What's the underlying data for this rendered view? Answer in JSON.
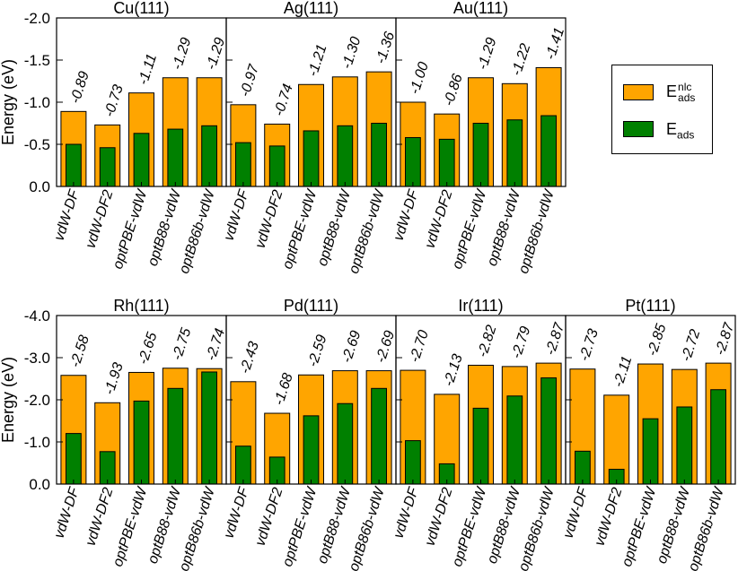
{
  "chart_data": {
    "type": "bar",
    "ylabel": "Energy (eV)",
    "categories": [
      "vdW-DF",
      "vdW-DF2",
      "optPBE-vdW",
      "optB88-vdW",
      "optB86b-vdW"
    ],
    "colors": {
      "nlc": "#FFA500",
      "ads": "#008000"
    },
    "legend": {
      "position": "right",
      "nlc_base": "E",
      "nlc_sup": "nlc",
      "nlc_sub": "ads",
      "ads_base": "E",
      "ads_sub": "ads"
    },
    "rows": [
      {
        "ylim": [
          0,
          -2.0
        ],
        "yticks": [
          0,
          -0.5,
          -1.0,
          -1.5,
          -2.0
        ],
        "ytick_labels": [
          "0.0",
          "-0.5",
          "-1.0",
          "-1.5",
          "-2.0"
        ],
        "panels": [
          {
            "title": "Cu(111)",
            "e_nlc": [
              -0.89,
              -0.73,
              -1.11,
              -1.29,
              -1.29
            ],
            "e_nlc_labels": [
              "-0.89",
              "-0.73",
              "-1.11",
              "-1.29",
              "-1.29"
            ],
            "e_ads": [
              -0.5,
              -0.46,
              -0.63,
              -0.68,
              -0.72
            ]
          },
          {
            "title": "Ag(111)",
            "e_nlc": [
              -0.97,
              -0.74,
              -1.21,
              -1.3,
              -1.36
            ],
            "e_nlc_labels": [
              "-0.97",
              "-0.74",
              "-1.21",
              "-1.30",
              "-1.36"
            ],
            "e_ads": [
              -0.52,
              -0.48,
              -0.66,
              -0.72,
              -0.75
            ]
          },
          {
            "title": "Au(111)",
            "e_nlc": [
              -1.0,
              -0.86,
              -1.29,
              -1.22,
              -1.41
            ],
            "e_nlc_labels": [
              "-1.00",
              "-0.86",
              "-1.29",
              "-1.22",
              "-1.41"
            ],
            "e_ads": [
              -0.58,
              -0.56,
              -0.75,
              -0.79,
              -0.84
            ]
          }
        ]
      },
      {
        "ylim": [
          0,
          -4.0
        ],
        "yticks": [
          0,
          -1.0,
          -2.0,
          -3.0,
          -4.0
        ],
        "ytick_labels": [
          "0.0",
          "-1.0",
          "-2.0",
          "-3.0",
          "-4.0"
        ],
        "panels": [
          {
            "title": "Rh(111)",
            "e_nlc": [
              -2.58,
              -1.93,
              -2.65,
              -2.75,
              -2.74
            ],
            "e_nlc_labels": [
              "-2.58",
              "-1.93",
              "-2.65",
              "-2.75",
              "-2.74"
            ],
            "e_ads": [
              -1.2,
              -0.77,
              -1.97,
              -2.27,
              -2.66
            ]
          },
          {
            "title": "Pd(111)",
            "e_nlc": [
              -2.43,
              -1.68,
              -2.59,
              -2.69,
              -2.69
            ],
            "e_nlc_labels": [
              "-2.43",
              "-1.68",
              "-2.59",
              "-2.69",
              "-2.69"
            ],
            "e_ads": [
              -0.9,
              -0.64,
              -1.62,
              -1.91,
              -2.27
            ]
          },
          {
            "title": "Ir(111)",
            "e_nlc": [
              -2.7,
              -2.13,
              -2.82,
              -2.79,
              -2.87
            ],
            "e_nlc_labels": [
              "-2.70",
              "-2.13",
              "-2.82",
              "-2.79",
              "-2.87"
            ],
            "e_ads": [
              -1.03,
              -0.48,
              -1.8,
              -2.09,
              -2.52
            ]
          },
          {
            "title": "Pt(111)",
            "e_nlc": [
              -2.73,
              -2.11,
              -2.85,
              -2.72,
              -2.87
            ],
            "e_nlc_labels": [
              "-2.73",
              "-2.11",
              "-2.85",
              "-2.72",
              "-2.87"
            ],
            "e_ads": [
              -0.78,
              -0.35,
              -1.55,
              -1.83,
              -2.24
            ]
          }
        ]
      }
    ]
  }
}
